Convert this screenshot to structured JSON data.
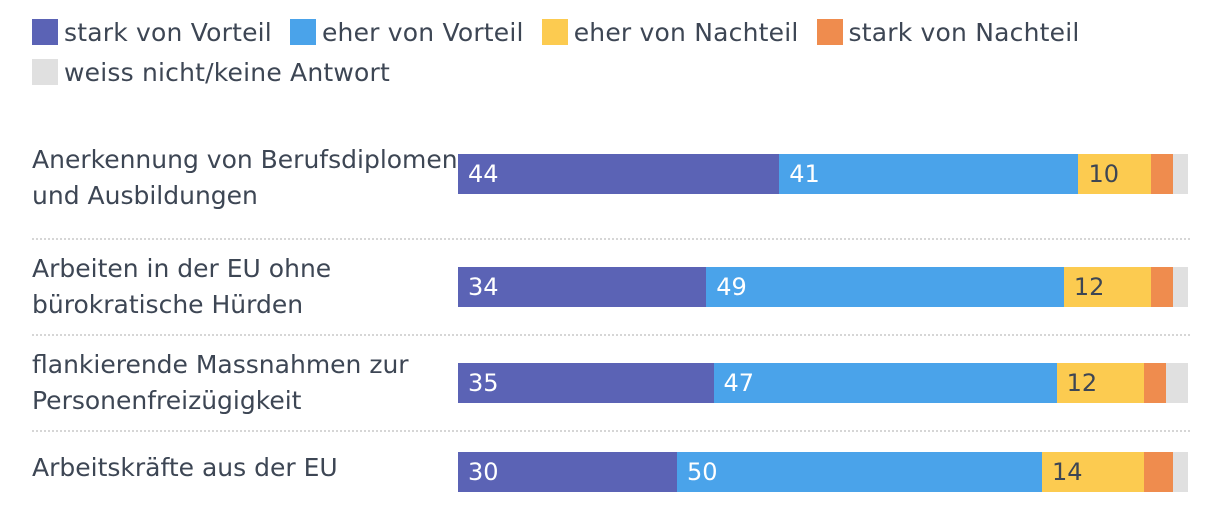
{
  "legend": [
    {
      "label": "stark von Vorteil",
      "color": "#5b63b5"
    },
    {
      "label": "eher von Vorteil",
      "color": "#4aa3ea"
    },
    {
      "label": "eher von Nachteil",
      "color": "#fccb50"
    },
    {
      "label": "stark von Nachteil",
      "color": "#ef8c4e"
    },
    {
      "label": "weiss nicht/keine Antwort",
      "color": "#e0e0e0"
    }
  ],
  "chart_data": {
    "type": "bar",
    "orientation": "horizontal",
    "stacked": true,
    "categories": [
      "Anerkennung von Berufsdiplomen und Ausbildungen",
      "Arbeiten in der EU ohne bürokratische Hürden",
      "flankierende Massnahmen zur Personenfreizügigkeit",
      "Arbeitskräfte aus der EU"
    ],
    "series": [
      {
        "name": "stark von Vorteil",
        "values": [
          44,
          34,
          35,
          30
        ]
      },
      {
        "name": "eher von Vorteil",
        "values": [
          41,
          49,
          47,
          50
        ]
      },
      {
        "name": "eher von Nachteil",
        "values": [
          10,
          12,
          12,
          14
        ]
      },
      {
        "name": "stark von Nachteil",
        "values": [
          3,
          3,
          3,
          4
        ]
      },
      {
        "name": "weiss nicht/keine Antwort",
        "values": [
          2,
          2,
          3,
          2
        ]
      }
    ],
    "data_labels": [
      [
        "44",
        "41",
        "10",
        "",
        ""
      ],
      [
        "34",
        "49",
        "12",
        "",
        ""
      ],
      [
        "35",
        "47",
        "12",
        "",
        ""
      ],
      [
        "30",
        "50",
        "14",
        "",
        ""
      ]
    ],
    "label_colors": [
      "#ffffff",
      "#ffffff",
      "#3d4654",
      "#3d4654",
      "#3d4654"
    ],
    "xlim": [
      0,
      100
    ]
  }
}
